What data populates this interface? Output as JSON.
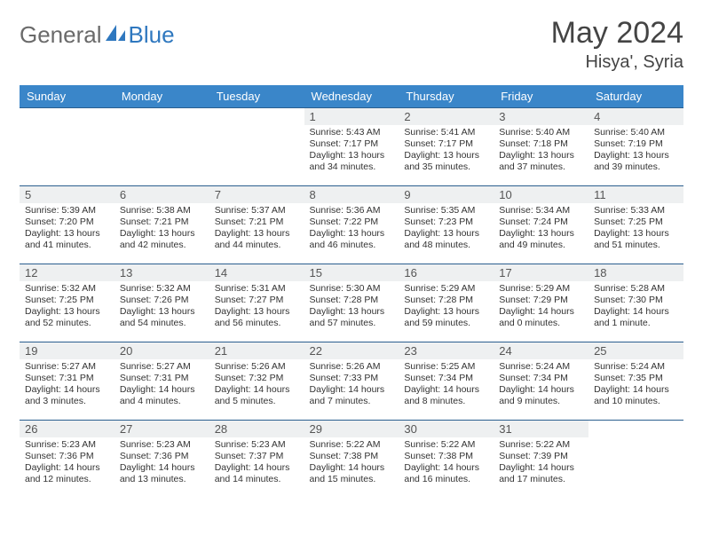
{
  "logo": {
    "text1": "General",
    "text2": "Blue",
    "color1": "#6a6a6a",
    "color2": "#2f78bf"
  },
  "title": "May 2024",
  "location": "Hisya', Syria",
  "colors": {
    "header_bg": "#3a86c9",
    "header_text": "#ffffff",
    "daynum_bg": "#eef0f1",
    "border": "#2b5f8f",
    "page_bg": "#ffffff"
  },
  "weekdays": [
    "Sunday",
    "Monday",
    "Tuesday",
    "Wednesday",
    "Thursday",
    "Friday",
    "Saturday"
  ],
  "weeks": [
    [
      {
        "n": "",
        "sr": "",
        "ss": "",
        "dl": ""
      },
      {
        "n": "",
        "sr": "",
        "ss": "",
        "dl": ""
      },
      {
        "n": "",
        "sr": "",
        "ss": "",
        "dl": ""
      },
      {
        "n": "1",
        "sr": "Sunrise: 5:43 AM",
        "ss": "Sunset: 7:17 PM",
        "dl": "Daylight: 13 hours and 34 minutes."
      },
      {
        "n": "2",
        "sr": "Sunrise: 5:41 AM",
        "ss": "Sunset: 7:17 PM",
        "dl": "Daylight: 13 hours and 35 minutes."
      },
      {
        "n": "3",
        "sr": "Sunrise: 5:40 AM",
        "ss": "Sunset: 7:18 PM",
        "dl": "Daylight: 13 hours and 37 minutes."
      },
      {
        "n": "4",
        "sr": "Sunrise: 5:40 AM",
        "ss": "Sunset: 7:19 PM",
        "dl": "Daylight: 13 hours and 39 minutes."
      }
    ],
    [
      {
        "n": "5",
        "sr": "Sunrise: 5:39 AM",
        "ss": "Sunset: 7:20 PM",
        "dl": "Daylight: 13 hours and 41 minutes."
      },
      {
        "n": "6",
        "sr": "Sunrise: 5:38 AM",
        "ss": "Sunset: 7:21 PM",
        "dl": "Daylight: 13 hours and 42 minutes."
      },
      {
        "n": "7",
        "sr": "Sunrise: 5:37 AM",
        "ss": "Sunset: 7:21 PM",
        "dl": "Daylight: 13 hours and 44 minutes."
      },
      {
        "n": "8",
        "sr": "Sunrise: 5:36 AM",
        "ss": "Sunset: 7:22 PM",
        "dl": "Daylight: 13 hours and 46 minutes."
      },
      {
        "n": "9",
        "sr": "Sunrise: 5:35 AM",
        "ss": "Sunset: 7:23 PM",
        "dl": "Daylight: 13 hours and 48 minutes."
      },
      {
        "n": "10",
        "sr": "Sunrise: 5:34 AM",
        "ss": "Sunset: 7:24 PM",
        "dl": "Daylight: 13 hours and 49 minutes."
      },
      {
        "n": "11",
        "sr": "Sunrise: 5:33 AM",
        "ss": "Sunset: 7:25 PM",
        "dl": "Daylight: 13 hours and 51 minutes."
      }
    ],
    [
      {
        "n": "12",
        "sr": "Sunrise: 5:32 AM",
        "ss": "Sunset: 7:25 PM",
        "dl": "Daylight: 13 hours and 52 minutes."
      },
      {
        "n": "13",
        "sr": "Sunrise: 5:32 AM",
        "ss": "Sunset: 7:26 PM",
        "dl": "Daylight: 13 hours and 54 minutes."
      },
      {
        "n": "14",
        "sr": "Sunrise: 5:31 AM",
        "ss": "Sunset: 7:27 PM",
        "dl": "Daylight: 13 hours and 56 minutes."
      },
      {
        "n": "15",
        "sr": "Sunrise: 5:30 AM",
        "ss": "Sunset: 7:28 PM",
        "dl": "Daylight: 13 hours and 57 minutes."
      },
      {
        "n": "16",
        "sr": "Sunrise: 5:29 AM",
        "ss": "Sunset: 7:28 PM",
        "dl": "Daylight: 13 hours and 59 minutes."
      },
      {
        "n": "17",
        "sr": "Sunrise: 5:29 AM",
        "ss": "Sunset: 7:29 PM",
        "dl": "Daylight: 14 hours and 0 minutes."
      },
      {
        "n": "18",
        "sr": "Sunrise: 5:28 AM",
        "ss": "Sunset: 7:30 PM",
        "dl": "Daylight: 14 hours and 1 minute."
      }
    ],
    [
      {
        "n": "19",
        "sr": "Sunrise: 5:27 AM",
        "ss": "Sunset: 7:31 PM",
        "dl": "Daylight: 14 hours and 3 minutes."
      },
      {
        "n": "20",
        "sr": "Sunrise: 5:27 AM",
        "ss": "Sunset: 7:31 PM",
        "dl": "Daylight: 14 hours and 4 minutes."
      },
      {
        "n": "21",
        "sr": "Sunrise: 5:26 AM",
        "ss": "Sunset: 7:32 PM",
        "dl": "Daylight: 14 hours and 5 minutes."
      },
      {
        "n": "22",
        "sr": "Sunrise: 5:26 AM",
        "ss": "Sunset: 7:33 PM",
        "dl": "Daylight: 14 hours and 7 minutes."
      },
      {
        "n": "23",
        "sr": "Sunrise: 5:25 AM",
        "ss": "Sunset: 7:34 PM",
        "dl": "Daylight: 14 hours and 8 minutes."
      },
      {
        "n": "24",
        "sr": "Sunrise: 5:24 AM",
        "ss": "Sunset: 7:34 PM",
        "dl": "Daylight: 14 hours and 9 minutes."
      },
      {
        "n": "25",
        "sr": "Sunrise: 5:24 AM",
        "ss": "Sunset: 7:35 PM",
        "dl": "Daylight: 14 hours and 10 minutes."
      }
    ],
    [
      {
        "n": "26",
        "sr": "Sunrise: 5:23 AM",
        "ss": "Sunset: 7:36 PM",
        "dl": "Daylight: 14 hours and 12 minutes."
      },
      {
        "n": "27",
        "sr": "Sunrise: 5:23 AM",
        "ss": "Sunset: 7:36 PM",
        "dl": "Daylight: 14 hours and 13 minutes."
      },
      {
        "n": "28",
        "sr": "Sunrise: 5:23 AM",
        "ss": "Sunset: 7:37 PM",
        "dl": "Daylight: 14 hours and 14 minutes."
      },
      {
        "n": "29",
        "sr": "Sunrise: 5:22 AM",
        "ss": "Sunset: 7:38 PM",
        "dl": "Daylight: 14 hours and 15 minutes."
      },
      {
        "n": "30",
        "sr": "Sunrise: 5:22 AM",
        "ss": "Sunset: 7:38 PM",
        "dl": "Daylight: 14 hours and 16 minutes."
      },
      {
        "n": "31",
        "sr": "Sunrise: 5:22 AM",
        "ss": "Sunset: 7:39 PM",
        "dl": "Daylight: 14 hours and 17 minutes."
      },
      {
        "n": "",
        "sr": "",
        "ss": "",
        "dl": ""
      }
    ]
  ]
}
